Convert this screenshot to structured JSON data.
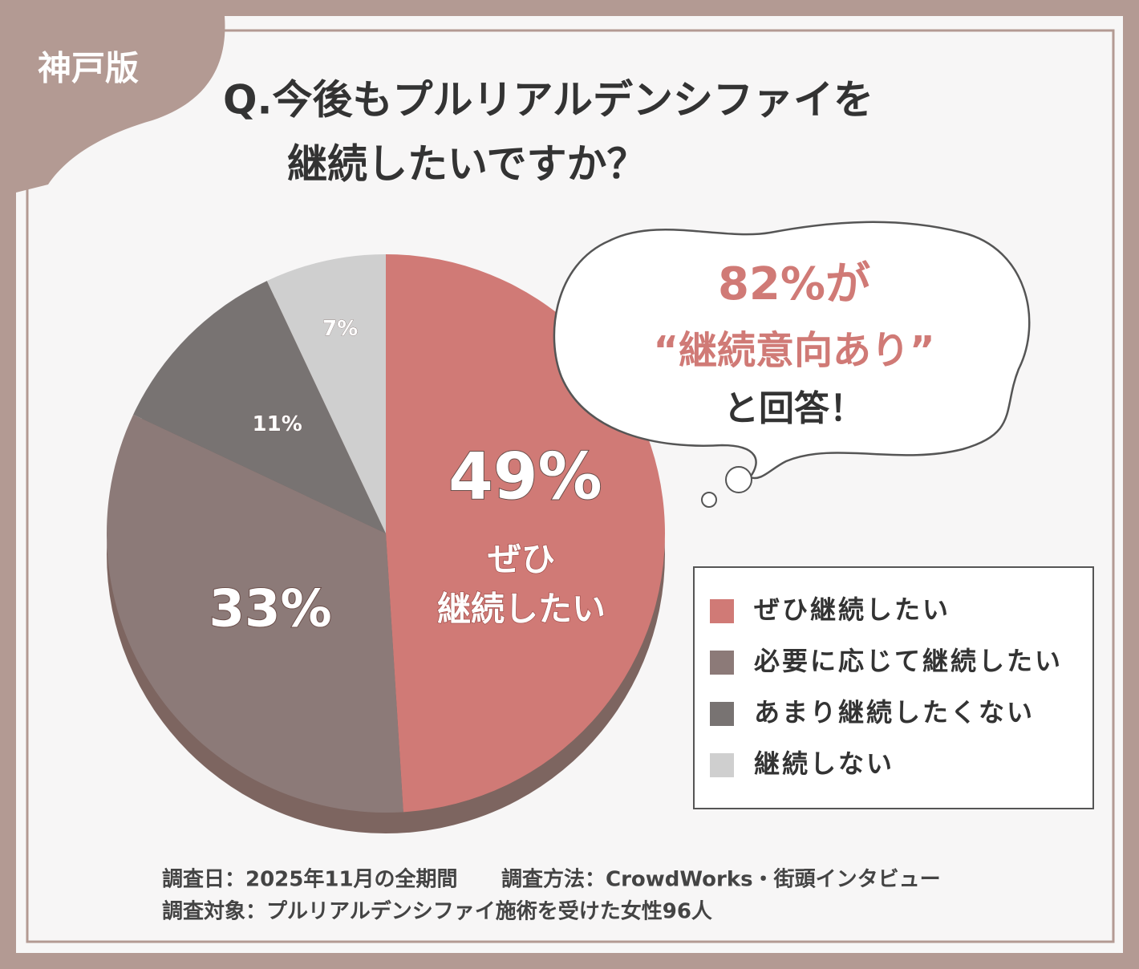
{
  "badge": "神戸版",
  "chart_data": {
    "type": "pie",
    "title": [
      "Q.今後もプルリアルデンシファイを",
      "継続したいですか？"
    ],
    "categories": [
      "ぜひ継続したい",
      "必要に応じて継続したい",
      "あまり継続したくない",
      "継続しない"
    ],
    "values": [
      49,
      33,
      11,
      7
    ],
    "value_labels": [
      "49%",
      "33%",
      "11%",
      "7%"
    ],
    "colors": [
      "#d07a76",
      "#8c7a78",
      "#787372",
      "#cfcfcf"
    ],
    "slice_annotation": [
      "ぜひ",
      "継続したい"
    ],
    "callout": [
      "82%が",
      "“継続意向あり”",
      "と回答！"
    ],
    "legend": true
  },
  "footer": [
    "調査日：2025年11月の全期間",
    "調査方法：CrowdWorks・街頭インタビュー",
    "調査対象：プルリアルデンシファイ施術を受けた女性96人"
  ]
}
